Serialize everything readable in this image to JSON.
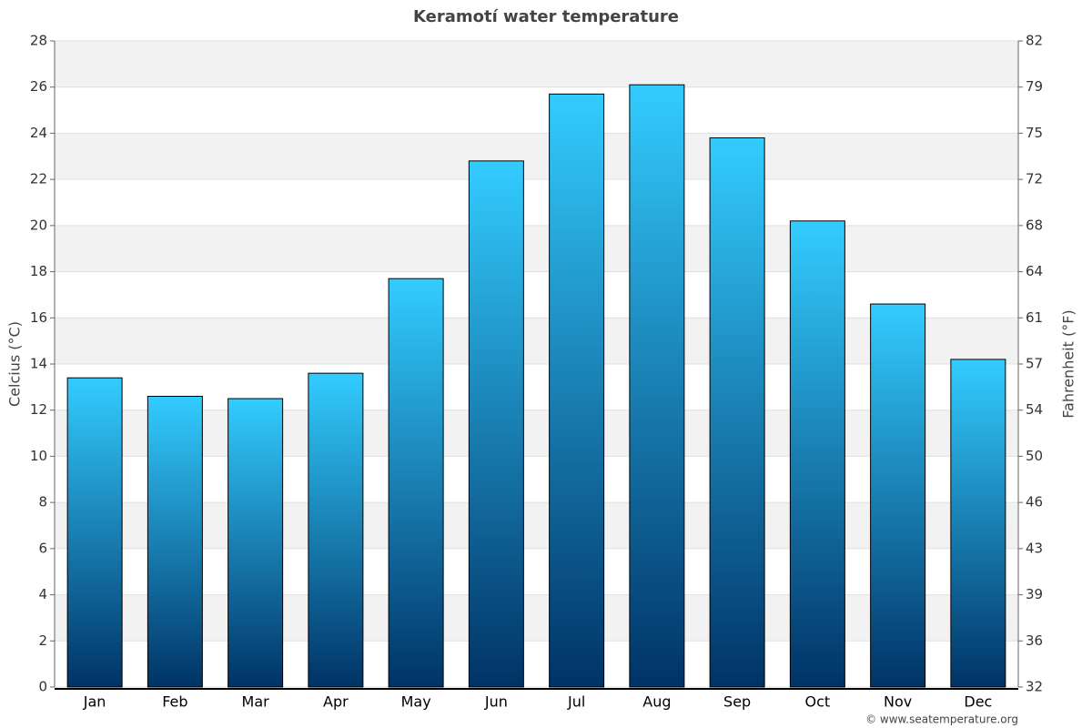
{
  "chart_data": {
    "type": "bar",
    "title": "Keramotí water temperature",
    "y_label": "Celcius (°C)",
    "y2_label": "Fahrenheit (°F)",
    "source": "© www.seatemperature.org",
    "categories": [
      "Jan",
      "Feb",
      "Mar",
      "Apr",
      "May",
      "Jun",
      "Jul",
      "Aug",
      "Sep",
      "Oct",
      "Nov",
      "Dec"
    ],
    "values": [
      13.4,
      12.6,
      12.5,
      13.6,
      17.7,
      22.8,
      25.7,
      26.1,
      23.8,
      20.2,
      16.6,
      14.2
    ],
    "color": [
      "#33ccff",
      "#003366"
    ],
    "ylim": [
      0,
      28
    ],
    "yticks": [
      0,
      2,
      4,
      6,
      8,
      10,
      12,
      14,
      16,
      18,
      20,
      22,
      24,
      26,
      28
    ],
    "y2lim": [
      32,
      82.4
    ],
    "y2ticks": [
      32,
      {
        "value": 35.6,
        "label": "36"
      },
      {
        "value": 39.2,
        "label": "39"
      },
      {
        "value": 42.8,
        "label": "43"
      },
      {
        "value": 46.4,
        "label": "46"
      },
      50,
      {
        "value": 53.6,
        "label": "54"
      },
      {
        "value": 57.2,
        "label": "57"
      },
      {
        "value": 60.8,
        "label": "61"
      },
      {
        "value": 64.4,
        "label": "64"
      },
      68,
      {
        "value": 71.6,
        "label": "72"
      },
      {
        "value": 75.2,
        "label": "75"
      },
      {
        "value": 78.8,
        "label": "79"
      },
      {
        "value": 82.4,
        "label": "82"
      }
    ],
    "grid": true
  }
}
